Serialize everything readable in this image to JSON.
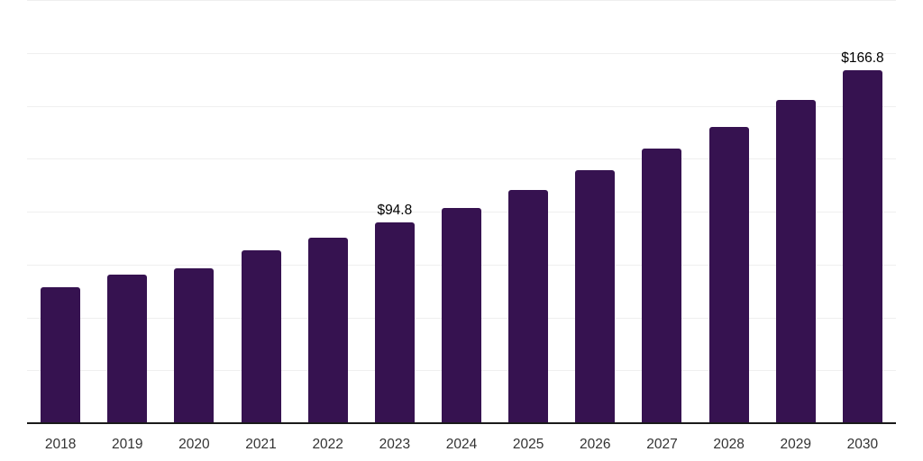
{
  "chart_data": {
    "type": "bar",
    "categories": [
      "2018",
      "2019",
      "2020",
      "2021",
      "2022",
      "2023",
      "2024",
      "2025",
      "2026",
      "2027",
      "2028",
      "2029",
      "2030"
    ],
    "values": [
      64.3,
      70.3,
      73.2,
      81.7,
      87.7,
      94.8,
      101.5,
      110.2,
      119.6,
      130.0,
      140.0,
      152.8,
      166.8
    ],
    "data_labels": [
      {
        "index": 5,
        "text": "$94.8"
      },
      {
        "index": 12,
        "text": "$166.8"
      }
    ],
    "title": "",
    "xlabel": "",
    "ylabel": "",
    "ylim": [
      0,
      200
    ],
    "gridline_step": 25,
    "grid": "horizontal",
    "legend": "none",
    "colors": {
      "bar": "#361250",
      "axis_line": "#1a1a1a",
      "gridline": "#efefef",
      "tick_label": "#333333",
      "data_label": "#000000",
      "background": "#ffffff"
    }
  }
}
